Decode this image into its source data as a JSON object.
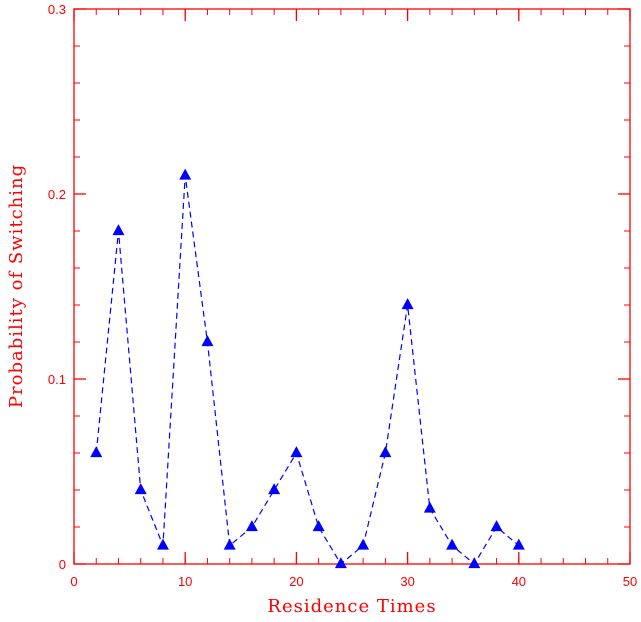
{
  "chart_data": {
    "type": "scatter",
    "title": "",
    "xlabel": "Residence Times",
    "ylabel": "Probability of Switching",
    "xlim": [
      0,
      50
    ],
    "ylim": [
      0,
      0.3
    ],
    "x_ticks": [
      "0",
      "10",
      "20",
      "30",
      "40",
      "50"
    ],
    "y_ticks": [
      "0",
      "0.1",
      "0.2",
      "0.3"
    ],
    "grid": false,
    "line_style": "dashed",
    "marker": "triangle",
    "axis_color": "#ff0000",
    "series_color": "#0000ff",
    "series": [
      {
        "x": [
          2,
          4,
          6,
          8,
          10,
          12,
          14,
          16,
          18,
          20,
          22,
          24,
          26,
          28,
          30,
          32,
          34,
          36,
          38,
          40
        ],
        "y": [
          0.06,
          0.18,
          0.04,
          0.01,
          0.21,
          0.12,
          0.01,
          0.02,
          0.04,
          0.06,
          0.02,
          0.0,
          0.01,
          0.06,
          0.14,
          0.03,
          0.01,
          0.0,
          0.02,
          0.01
        ]
      }
    ]
  }
}
